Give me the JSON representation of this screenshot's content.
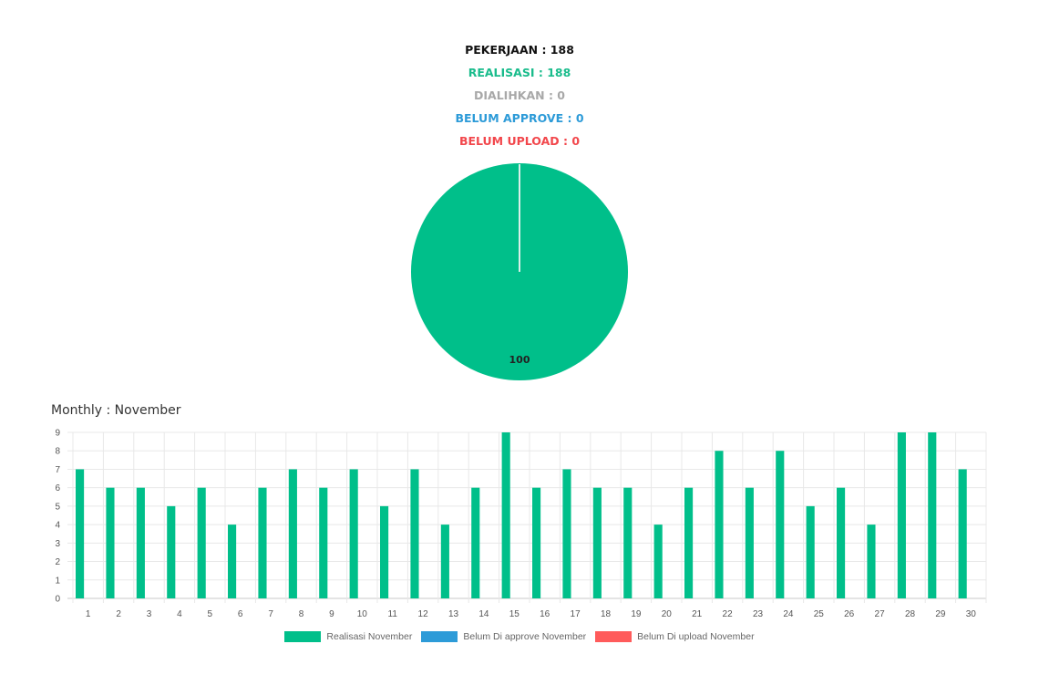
{
  "summary": {
    "pekerjaan": "PEKERJAAN : 188",
    "realisasi": "REALISASI : 188",
    "dialihkan": "DIALIHKAN : 0",
    "belum_approve": "BELUM APPROVE : 0",
    "belum_upload": "BELUM UPLOAD : 0"
  },
  "colors": {
    "realisasi": "#00bf8a",
    "dialihkan": "#a8a8a8",
    "belum_approve": "#2d9bd8",
    "belum_upload": "#ff5b5b"
  },
  "chart_data": [
    {
      "type": "pie",
      "slices": [
        {
          "name": "Realisasi",
          "value": 188,
          "color": "#00bf8a"
        },
        {
          "name": "Dialihkan",
          "value": 0,
          "color": "#a8a8a8"
        },
        {
          "name": "Belum Approve",
          "value": 0,
          "color": "#2d9bd8"
        },
        {
          "name": "Belum Upload",
          "value": 0,
          "color": "#ff5b5b"
        }
      ],
      "data_label": "100"
    },
    {
      "type": "bar",
      "title": "Monthly : November",
      "categories": [
        "1",
        "2",
        "3",
        "4",
        "5",
        "6",
        "7",
        "8",
        "9",
        "10",
        "11",
        "12",
        "13",
        "14",
        "15",
        "16",
        "17",
        "18",
        "19",
        "20",
        "21",
        "22",
        "23",
        "24",
        "25",
        "26",
        "27",
        "28",
        "29",
        "30"
      ],
      "series": [
        {
          "name": "Realisasi November",
          "color": "#00bf8a",
          "values": [
            7,
            6,
            6,
            5,
            6,
            4,
            6,
            7,
            6,
            7,
            5,
            7,
            4,
            6,
            9,
            6,
            7,
            6,
            6,
            4,
            6,
            8,
            6,
            8,
            5,
            6,
            4,
            9,
            9,
            7
          ]
        },
        {
          "name": "Belum Di approve November",
          "color": "#2d9bd8",
          "values": [
            0,
            0,
            0,
            0,
            0,
            0,
            0,
            0,
            0,
            0,
            0,
            0,
            0,
            0,
            0,
            0,
            0,
            0,
            0,
            0,
            0,
            0,
            0,
            0,
            0,
            0,
            0,
            0,
            0,
            0
          ]
        },
        {
          "name": "Belum Di upload November",
          "color": "#ff5b5b",
          "values": [
            0,
            0,
            0,
            0,
            0,
            0,
            0,
            0,
            0,
            0,
            0,
            0,
            0,
            0,
            0,
            0,
            0,
            0,
            0,
            0,
            0,
            0,
            0,
            0,
            0,
            0,
            0,
            0,
            0,
            0
          ]
        }
      ],
      "ylim": [
        0,
        9
      ],
      "yticks": [
        "0",
        "1",
        "2",
        "3",
        "4",
        "5",
        "6",
        "7",
        "8",
        "9"
      ],
      "grid": true,
      "legend": "bottom"
    }
  ]
}
